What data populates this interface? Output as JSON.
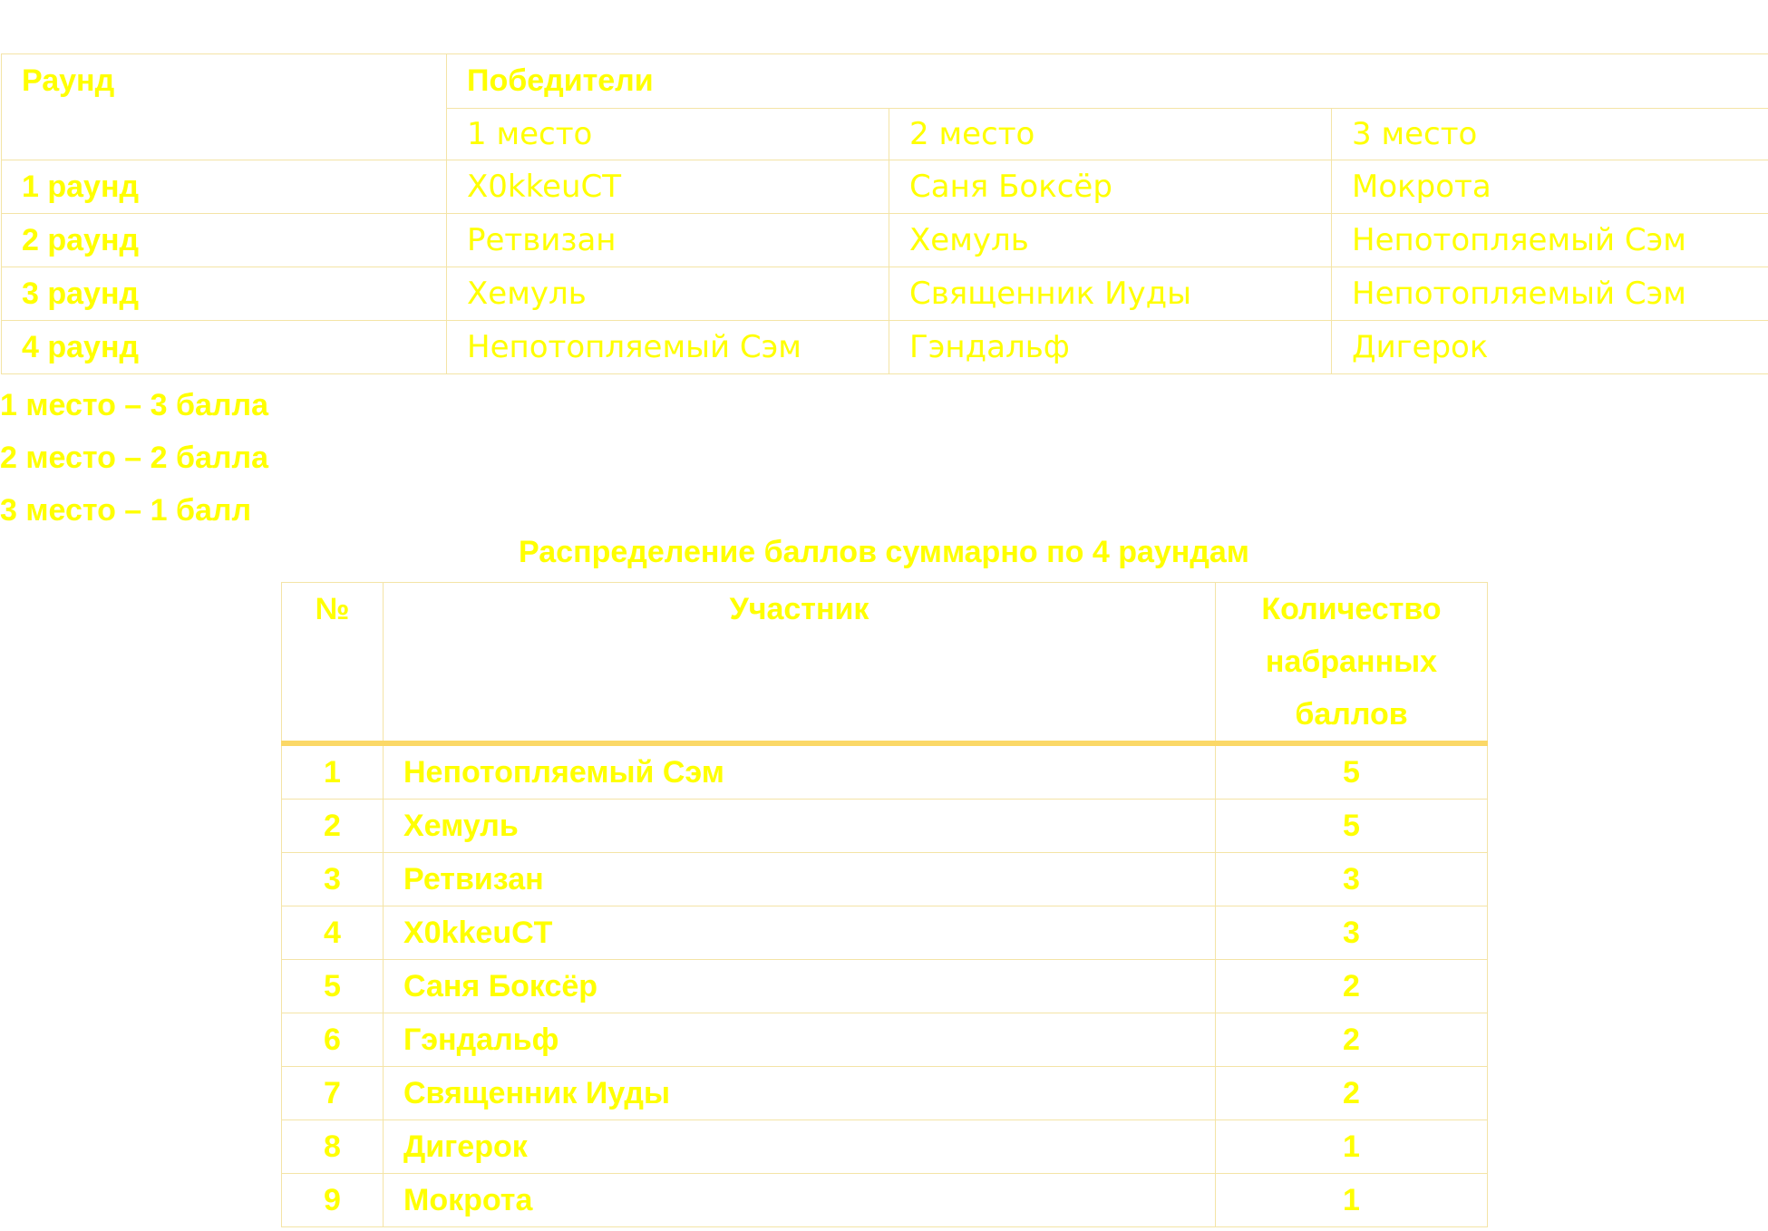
{
  "winners_table": {
    "round_header": "Раунд",
    "winners_header": "Победители",
    "place_headers": [
      "1 место",
      "2 место",
      "3 место"
    ],
    "rows": [
      {
        "round": "1 раунд",
        "first": "X0kkeuCT",
        "second": "Саня Боксёр",
        "third": "Мокрота"
      },
      {
        "round": "2 раунд",
        "first": "Ретвизан",
        "second": "Хемуль",
        "third": "Непотопляемый Сэм"
      },
      {
        "round": "3 раунд",
        "first": "Хемуль",
        "second": "Священник Иуды",
        "third": "Непотопляемый Сэм"
      },
      {
        "round": "4 раунд",
        "first": "Непотопляемый Сэм",
        "second": "Гэндальф",
        "third": "Дигерок"
      }
    ]
  },
  "points_legend": [
    "1 место – 3 балла",
    "2 место – 2 балла",
    "3 место – 1 балл"
  ],
  "totals_table": {
    "title": "Распределение баллов суммарно по 4 раундам",
    "headers": {
      "num": "№",
      "participant": "Участник",
      "score": "Количество набранных баллов"
    },
    "rows": [
      {
        "num": "1",
        "name": "Непотопляемый Сэм",
        "score": "5"
      },
      {
        "num": "2",
        "name": "Хемуль",
        "score": "5"
      },
      {
        "num": "3",
        "name": "Ретвизан",
        "score": "3"
      },
      {
        "num": "4",
        "name": "X0kkeuCT",
        "score": "3"
      },
      {
        "num": "5",
        "name": "Саня Боксёр",
        "score": "2"
      },
      {
        "num": "6",
        "name": "Гэндальф",
        "score": "2"
      },
      {
        "num": "7",
        "name": "Священник Иуды",
        "score": "2"
      },
      {
        "num": "8",
        "name": "Дигерок",
        "score": "1"
      },
      {
        "num": "9",
        "name": "Мокрота",
        "score": "1"
      }
    ]
  },
  "colors": {
    "text": "#ffff00",
    "border": "#f4e4a6",
    "header_rule": "#fbd867"
  }
}
